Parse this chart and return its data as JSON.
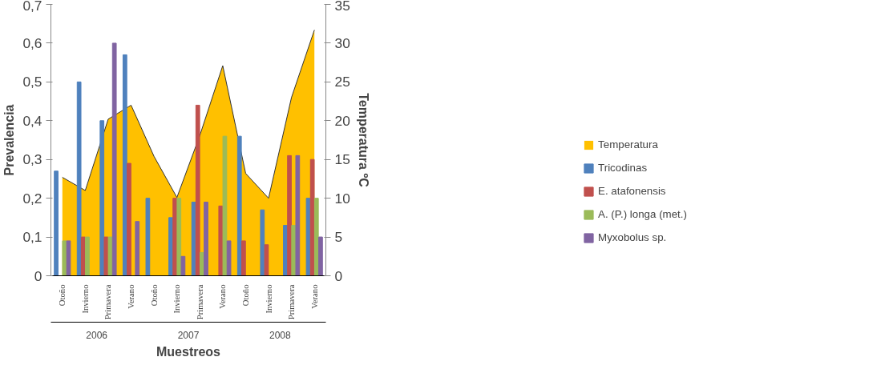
{
  "chart_data": {
    "type": "bar",
    "xlabel": "Muestreos",
    "ylabel": "Prevalencia",
    "y2label": "Temperatura ºC",
    "categories": [
      "Otoño",
      "Invierno",
      "Primavera",
      "Verano",
      "Otoño",
      "Invierno",
      "Primavera",
      "Verano",
      "Otoño",
      "Invierno",
      "Primavera",
      "Verano"
    ],
    "annotations": [
      "2006",
      "2007",
      "2008"
    ],
    "series": [
      {
        "name": "Temperatura",
        "type": "area",
        "axis": "y2",
        "color": "#ffc000",
        "values": [
          12.7,
          11,
          20.2,
          22,
          15.4,
          10.1,
          18.1,
          27.1,
          13.2,
          10,
          23,
          31.7
        ]
      },
      {
        "name": "Tricodinas",
        "color": "#4f81bd",
        "values": [
          0.27,
          0.5,
          0.4,
          0.57,
          0.2,
          0.15,
          0.19,
          0,
          0.36,
          0.17,
          0.13,
          0.2
        ]
      },
      {
        "name": "E. atafonensis",
        "color": "#c0504d",
        "values": [
          0,
          0.1,
          0.1,
          0.29,
          0,
          0.2,
          0.44,
          0.18,
          0.09,
          0.08,
          0.31,
          0.3
        ]
      },
      {
        "name": "A. (P.) longa (met.)",
        "color": "#9bbb59",
        "values": [
          0.09,
          0.1,
          0.1,
          0,
          0,
          0.2,
          0.06,
          0.36,
          0,
          0,
          0.13,
          0.2
        ]
      },
      {
        "name": "Myxobolus sp.",
        "color": "#8064a2",
        "values": [
          0.09,
          0,
          0.6,
          0.14,
          0,
          0.05,
          0.19,
          0.09,
          0,
          0,
          0.31,
          0.1
        ]
      }
    ],
    "ylim": [
      0,
      0.7
    ],
    "yticks": [
      {
        "value": 0,
        "label": "0"
      },
      {
        "value": 0.1,
        "label": "0,1"
      },
      {
        "value": 0.2,
        "label": "0,2"
      },
      {
        "value": 0.3,
        "label": "0,3"
      },
      {
        "value": 0.4,
        "label": "0,4"
      },
      {
        "value": 0.5,
        "label": "0,5"
      },
      {
        "value": 0.6,
        "label": "0,6"
      },
      {
        "value": 0.7,
        "label": "0,7"
      }
    ],
    "y2lim": [
      0,
      35
    ],
    "y2ticks": [
      0,
      5,
      10,
      15,
      20,
      25,
      30,
      35
    ],
    "legend": "right",
    "grid": false
  }
}
